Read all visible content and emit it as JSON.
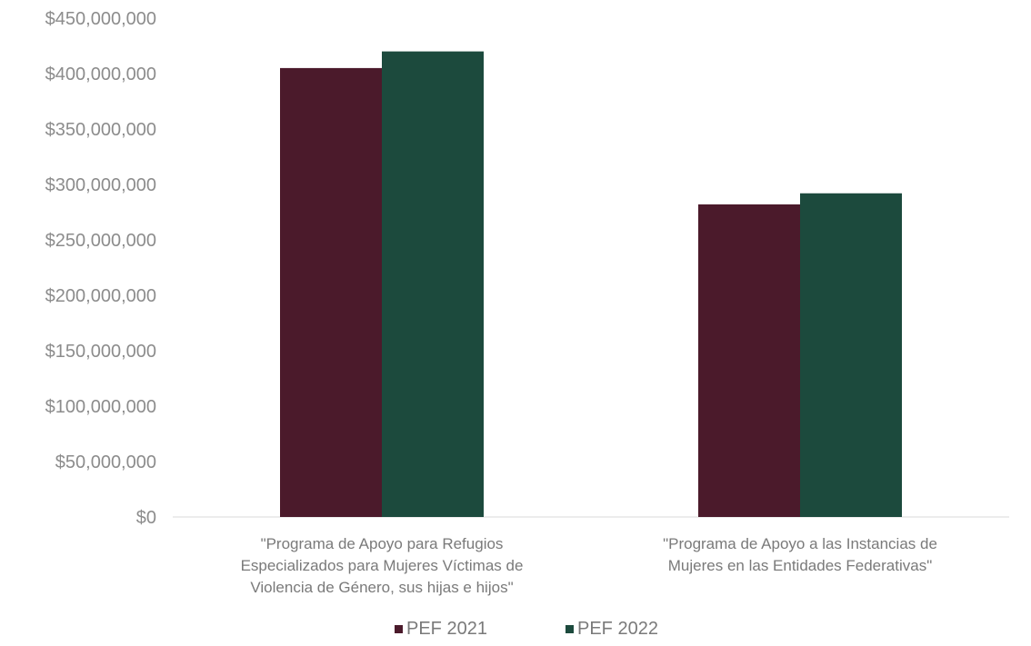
{
  "chart_data": {
    "type": "bar",
    "categories": [
      [
        "\"Programa de Apoyo para Refugios",
        "Especializados para Mujeres Víctimas de",
        "Violencia de Género, sus hijas e hijos\""
      ],
      [
        "\"Programa de Apoyo a las Instancias de",
        "Mujeres en las Entidades Federativas\""
      ]
    ],
    "series": [
      {
        "name": "PEF 2021",
        "color": "#4b1a2b",
        "values": [
          405000000,
          282000000
        ]
      },
      {
        "name": "PEF 2022",
        "color": "#1c4a3d",
        "values": [
          420000000,
          292000000
        ]
      }
    ],
    "ylim": [
      0,
      450000000
    ],
    "yticks": [
      "$0",
      "$50,000,000",
      "$100,000,000",
      "$150,000,000",
      "$200,000,000",
      "$250,000,000",
      "$300,000,000",
      "$350,000,000",
      "$400,000,000",
      "$450,000,000"
    ],
    "grid": false,
    "legend": "bottom",
    "title": "",
    "xlabel": "",
    "ylabel": ""
  }
}
